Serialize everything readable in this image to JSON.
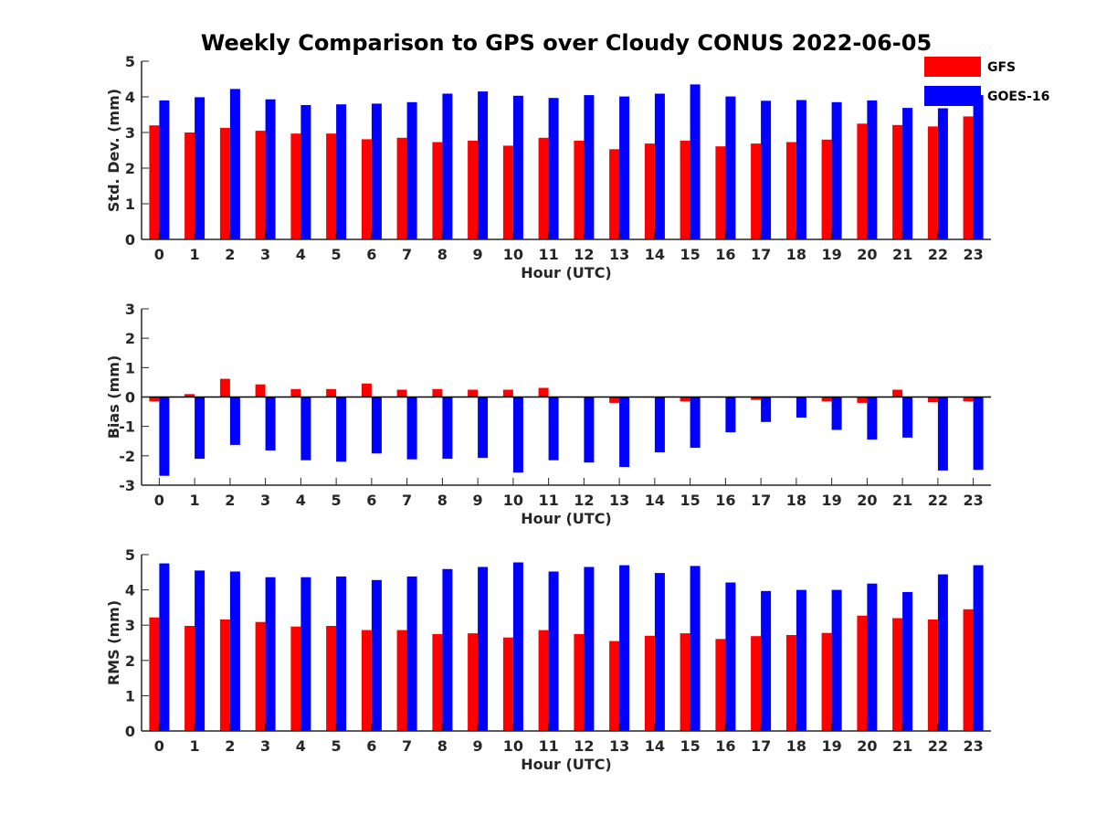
{
  "title": "Weekly Comparison to GPS over Cloudy CONUS 2022-06-05",
  "legend": {
    "placement": "top-right",
    "entries": [
      {
        "name": "GFS",
        "color": "#ff0000"
      },
      {
        "name": "GOES-16",
        "color": "#0000ff"
      }
    ]
  },
  "chart_data": [
    {
      "type": "bar",
      "xlabel": "Hour (UTC)",
      "ylabel": "Std. Dev. (mm)",
      "ylim": [
        0,
        5
      ],
      "yticks": [
        0,
        1,
        2,
        3,
        4,
        5
      ],
      "categories": [
        "0",
        "1",
        "2",
        "3",
        "4",
        "5",
        "6",
        "7",
        "8",
        "9",
        "10",
        "11",
        "12",
        "13",
        "14",
        "15",
        "16",
        "17",
        "18",
        "19",
        "20",
        "21",
        "22",
        "23"
      ],
      "series": [
        {
          "name": "GFS",
          "color": "#ff0000",
          "values": [
            3.2,
            3.0,
            3.13,
            3.05,
            2.97,
            2.97,
            2.81,
            2.85,
            2.73,
            2.77,
            2.63,
            2.85,
            2.77,
            2.53,
            2.69,
            2.77,
            2.61,
            2.69,
            2.73,
            2.8,
            3.25,
            3.21,
            3.17,
            3.45
          ]
        },
        {
          "name": "GOES-16",
          "color": "#0000ff",
          "values": [
            3.9,
            3.99,
            4.22,
            3.93,
            3.77,
            3.79,
            3.81,
            3.85,
            4.09,
            4.15,
            4.03,
            3.97,
            4.05,
            4.01,
            4.09,
            4.35,
            4.01,
            3.89,
            3.91,
            3.85,
            3.9,
            3.69,
            3.68,
            4.05
          ]
        }
      ]
    },
    {
      "type": "bar",
      "xlabel": "Hour (UTC)",
      "ylabel": "Bias (mm)",
      "ylim": [
        -3,
        3
      ],
      "yticks": [
        -3,
        -2,
        -1,
        0,
        1,
        2,
        3
      ],
      "zero_line": true,
      "categories": [
        "0",
        "1",
        "2",
        "3",
        "4",
        "5",
        "6",
        "7",
        "8",
        "9",
        "10",
        "11",
        "12",
        "13",
        "14",
        "15",
        "16",
        "17",
        "18",
        "19",
        "20",
        "21",
        "22",
        "23"
      ],
      "series": [
        {
          "name": "GFS",
          "color": "#ff0000",
          "values": [
            -0.15,
            0.1,
            0.62,
            0.43,
            0.27,
            0.27,
            0.46,
            0.25,
            0.27,
            0.25,
            0.25,
            0.31,
            -0.02,
            -0.2,
            -0.02,
            -0.15,
            -0.02,
            -0.1,
            -0.02,
            -0.15,
            -0.2,
            0.25,
            -0.18,
            -0.15
          ]
        },
        {
          "name": "GOES-16",
          "color": "#0000ff",
          "values": [
            -2.68,
            -2.1,
            -1.63,
            -1.82,
            -2.15,
            -2.2,
            -1.92,
            -2.12,
            -2.1,
            -2.07,
            -2.57,
            -2.15,
            -2.23,
            -2.38,
            -1.88,
            -1.73,
            -1.2,
            -0.85,
            -0.7,
            -1.12,
            -1.45,
            -1.38,
            -2.5,
            -2.48
          ]
        }
      ]
    },
    {
      "type": "bar",
      "xlabel": "Hour (UTC)",
      "ylabel": "RMS (mm)",
      "ylim": [
        0,
        5
      ],
      "yticks": [
        0,
        1,
        2,
        3,
        4,
        5
      ],
      "categories": [
        "0",
        "1",
        "2",
        "3",
        "4",
        "5",
        "6",
        "7",
        "8",
        "9",
        "10",
        "11",
        "12",
        "13",
        "14",
        "15",
        "16",
        "17",
        "18",
        "19",
        "20",
        "21",
        "22",
        "23"
      ],
      "series": [
        {
          "name": "GFS",
          "color": "#ff0000",
          "values": [
            3.22,
            2.98,
            3.16,
            3.09,
            2.96,
            2.98,
            2.86,
            2.86,
            2.75,
            2.77,
            2.65,
            2.86,
            2.75,
            2.55,
            2.7,
            2.77,
            2.61,
            2.69,
            2.72,
            2.78,
            3.27,
            3.2,
            3.16,
            3.45
          ]
        },
        {
          "name": "GOES-16",
          "color": "#0000ff",
          "values": [
            4.75,
            4.55,
            4.52,
            4.36,
            4.36,
            4.38,
            4.28,
            4.38,
            4.59,
            4.65,
            4.78,
            4.52,
            4.65,
            4.7,
            4.48,
            4.68,
            4.21,
            3.97,
            4.0,
            4.0,
            4.18,
            3.94,
            4.44,
            4.7
          ]
        }
      ]
    }
  ]
}
